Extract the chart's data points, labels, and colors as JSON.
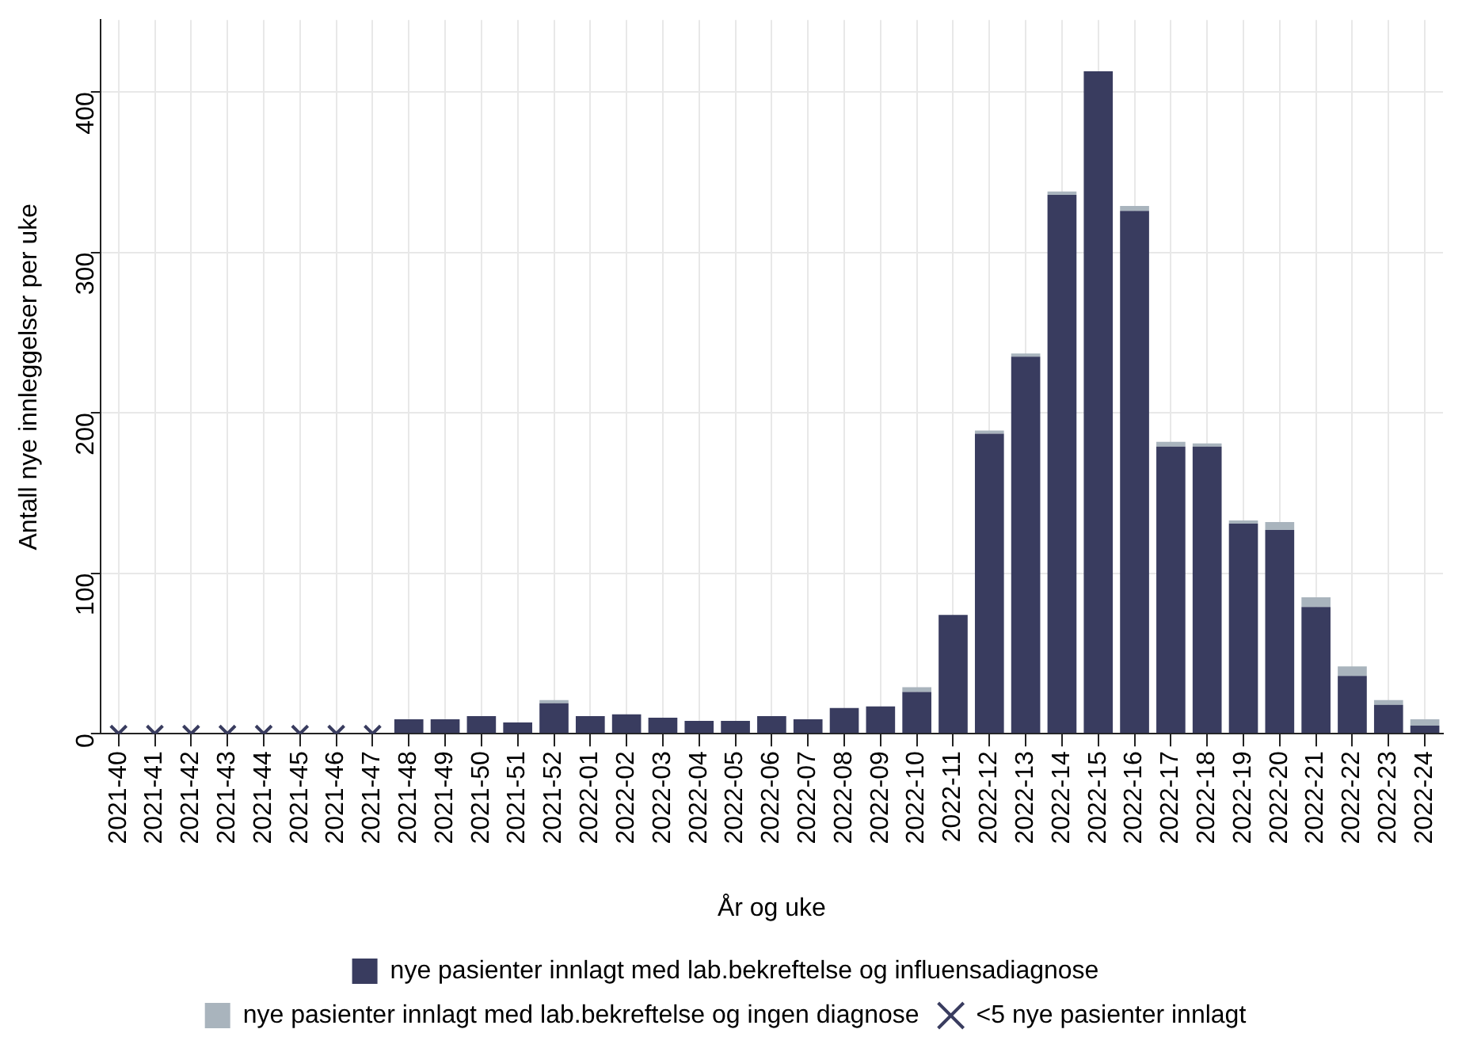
{
  "chart_data": {
    "type": "bar",
    "stacked": true,
    "xlabel": "År og uke",
    "ylabel": "Antall nye innleggelser per uke",
    "categories": [
      "2021-40",
      "2021-41",
      "2021-42",
      "2021-43",
      "2021-44",
      "2021-45",
      "2021-46",
      "2021-47",
      "2021-48",
      "2021-49",
      "2021-50",
      "2021-51",
      "2021-52",
      "2022-01",
      "2022-02",
      "2022-03",
      "2022-04",
      "2022-05",
      "2022-06",
      "2022-07",
      "2022-08",
      "2022-09",
      "2022-10",
      "2022-11",
      "2022-12",
      "2022-13",
      "2022-14",
      "2022-15",
      "2022-16",
      "2022-17",
      "2022-18",
      "2022-19",
      "2022-20",
      "2022-21",
      "2022-22",
      "2022-23",
      "2022-24"
    ],
    "series": [
      {
        "name": "nye pasienter innlagt med lab.bekreftelse og influensadiagnose",
        "color": "#393c5f",
        "values": [
          null,
          null,
          null,
          null,
          null,
          null,
          null,
          null,
          9,
          9,
          11,
          7,
          19,
          11,
          12,
          10,
          8,
          8,
          11,
          9,
          16,
          17,
          26,
          74,
          187,
          235,
          336,
          413,
          326,
          179,
          179,
          131,
          127,
          79,
          36,
          18,
          5
        ]
      },
      {
        "name": "nye pasienter innlagt med lab.bekreftelse og ingen diagnose",
        "color": "#a9b4bd",
        "values": [
          null,
          null,
          null,
          null,
          null,
          null,
          null,
          null,
          0,
          0,
          0,
          0,
          2,
          0,
          null,
          0,
          0,
          0,
          0,
          0,
          0,
          0,
          3,
          0,
          2,
          2,
          2,
          0,
          3,
          3,
          2,
          2,
          5,
          6,
          6,
          3,
          4
        ]
      },
      {
        "name": "<5 nye pasienter innlagt",
        "type": "scatter",
        "marker": "cross",
        "color": "#393c5f",
        "x": [
          "2021-40",
          "2021-41",
          "2021-42",
          "2021-43",
          "2021-44",
          "2021-45",
          "2021-46",
          "2021-47"
        ],
        "values": [
          0,
          0,
          0,
          0,
          0,
          0,
          0,
          0
        ]
      }
    ],
    "ylim": [
      0,
      445
    ],
    "yticks": [
      0,
      100,
      200,
      300,
      400
    ],
    "grid": true,
    "legend": "bottom"
  }
}
